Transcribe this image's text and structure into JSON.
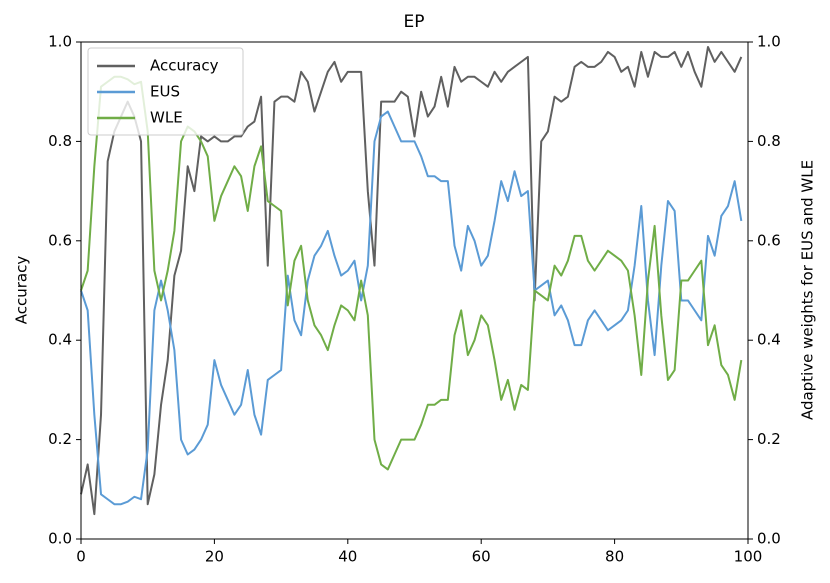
{
  "chart_data": {
    "type": "line",
    "title": "EP",
    "y_label": "Accuracy",
    "y2_label": "Adaptive weights for EUS and WLE",
    "x": [
      0,
      1,
      2,
      3,
      4,
      5,
      6,
      7,
      8,
      9,
      10,
      11,
      12,
      13,
      14,
      15,
      16,
      17,
      18,
      19,
      20,
      21,
      22,
      23,
      24,
      25,
      26,
      27,
      28,
      29,
      30,
      31,
      32,
      33,
      34,
      35,
      36,
      37,
      38,
      39,
      40,
      41,
      42,
      43,
      44,
      45,
      46,
      47,
      48,
      49,
      50,
      51,
      52,
      53,
      54,
      55,
      56,
      57,
      58,
      59,
      60,
      61,
      62,
      63,
      64,
      65,
      66,
      67,
      68,
      69,
      70,
      71,
      72,
      73,
      74,
      75,
      76,
      77,
      78,
      79,
      80,
      81,
      82,
      83,
      84,
      85,
      86,
      87,
      88,
      89,
      90,
      91,
      92,
      93,
      94,
      95,
      96,
      97,
      98,
      99
    ],
    "series": [
      {
        "name": "Accuracy",
        "color": "#606060",
        "axis": "y",
        "values": [
          0.09,
          0.15,
          0.05,
          0.25,
          0.76,
          0.82,
          0.85,
          0.88,
          0.85,
          0.8,
          0.07,
          0.13,
          0.27,
          0.36,
          0.53,
          0.58,
          0.75,
          0.7,
          0.81,
          0.8,
          0.81,
          0.8,
          0.8,
          0.81,
          0.81,
          0.83,
          0.84,
          0.89,
          0.55,
          0.88,
          0.89,
          0.89,
          0.88,
          0.94,
          0.92,
          0.86,
          0.9,
          0.94,
          0.96,
          0.92,
          0.94,
          0.94,
          0.94,
          0.7,
          0.55,
          0.88,
          0.88,
          0.88,
          0.9,
          0.89,
          0.81,
          0.9,
          0.85,
          0.87,
          0.93,
          0.87,
          0.95,
          0.92,
          0.93,
          0.93,
          0.92,
          0.91,
          0.94,
          0.92,
          0.94,
          0.95,
          0.96,
          0.97,
          0.48,
          0.8,
          0.82,
          0.89,
          0.88,
          0.89,
          0.95,
          0.96,
          0.95,
          0.95,
          0.96,
          0.98,
          0.97,
          0.94,
          0.95,
          0.91,
          0.98,
          0.93,
          0.98,
          0.97,
          0.97,
          0.98,
          0.95,
          0.98,
          0.94,
          0.91,
          0.99,
          0.96,
          0.98,
          0.96,
          0.94,
          0.97
        ]
      },
      {
        "name": "EUS",
        "color": "#5b9bd5",
        "axis": "y2",
        "values": [
          0.5,
          0.46,
          0.25,
          0.09,
          0.08,
          0.07,
          0.07,
          0.075,
          0.085,
          0.08,
          0.18,
          0.46,
          0.52,
          0.46,
          0.38,
          0.2,
          0.17,
          0.18,
          0.2,
          0.23,
          0.36,
          0.31,
          0.28,
          0.25,
          0.27,
          0.34,
          0.25,
          0.21,
          0.32,
          0.33,
          0.34,
          0.53,
          0.44,
          0.41,
          0.52,
          0.57,
          0.59,
          0.62,
          0.57,
          0.53,
          0.54,
          0.56,
          0.48,
          0.55,
          0.8,
          0.85,
          0.86,
          0.83,
          0.8,
          0.8,
          0.8,
          0.77,
          0.73,
          0.73,
          0.72,
          0.72,
          0.59,
          0.54,
          0.63,
          0.6,
          0.55,
          0.57,
          0.64,
          0.72,
          0.68,
          0.74,
          0.69,
          0.7,
          0.5,
          0.51,
          0.52,
          0.45,
          0.47,
          0.44,
          0.39,
          0.39,
          0.44,
          0.46,
          0.44,
          0.42,
          0.43,
          0.44,
          0.46,
          0.55,
          0.67,
          0.48,
          0.37,
          0.55,
          0.68,
          0.66,
          0.48,
          0.48,
          0.46,
          0.44,
          0.61,
          0.57,
          0.65,
          0.67,
          0.72,
          0.64
        ]
      },
      {
        "name": "WLE",
        "color": "#70ad47",
        "axis": "y2",
        "values": [
          0.5,
          0.54,
          0.75,
          0.91,
          0.92,
          0.93,
          0.93,
          0.925,
          0.915,
          0.92,
          0.82,
          0.54,
          0.48,
          0.54,
          0.62,
          0.8,
          0.83,
          0.82,
          0.8,
          0.77,
          0.64,
          0.69,
          0.72,
          0.75,
          0.73,
          0.66,
          0.75,
          0.79,
          0.68,
          0.67,
          0.66,
          0.47,
          0.56,
          0.59,
          0.48,
          0.43,
          0.41,
          0.38,
          0.43,
          0.47,
          0.46,
          0.44,
          0.52,
          0.45,
          0.2,
          0.15,
          0.14,
          0.17,
          0.2,
          0.2,
          0.2,
          0.23,
          0.27,
          0.27,
          0.28,
          0.28,
          0.41,
          0.46,
          0.37,
          0.4,
          0.45,
          0.43,
          0.36,
          0.28,
          0.32,
          0.26,
          0.31,
          0.3,
          0.5,
          0.49,
          0.48,
          0.55,
          0.53,
          0.56,
          0.61,
          0.61,
          0.56,
          0.54,
          0.56,
          0.58,
          0.57,
          0.56,
          0.54,
          0.45,
          0.33,
          0.52,
          0.63,
          0.45,
          0.32,
          0.34,
          0.52,
          0.52,
          0.54,
          0.56,
          0.39,
          0.43,
          0.35,
          0.33,
          0.28,
          0.36
        ]
      }
    ],
    "xlim": [
      0,
      100
    ],
    "xticks": [
      0,
      20,
      40,
      60,
      80,
      100
    ],
    "ylim": [
      0,
      1
    ],
    "yticks": [
      {
        "value": 0,
        "label": "0.0"
      },
      0.2,
      0.4,
      0.6,
      0.8,
      {
        "value": 1,
        "label": "1.0"
      }
    ],
    "y2lim": [
      0,
      1
    ],
    "y2ticks": [
      {
        "value": 0,
        "label": "0.0"
      },
      0.2,
      0.4,
      0.6,
      0.8,
      {
        "value": 1,
        "label": "1.0"
      }
    ],
    "legend": "upper left"
  }
}
